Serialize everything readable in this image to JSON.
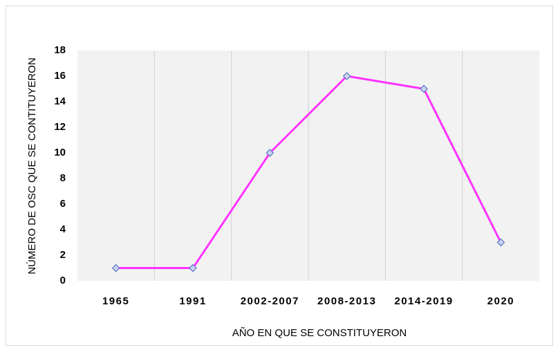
{
  "chart_data": {
    "type": "line",
    "categories": [
      "1965",
      "1991",
      "2002-2007",
      "2008-2013",
      "2014-2019",
      "2020"
    ],
    "series": [
      {
        "name": "OSC",
        "color": "#ff33ff",
        "values": [
          1,
          1,
          10,
          16,
          15,
          3
        ]
      }
    ],
    "x_label": "AÑO EN QUE SE CONSTITUYERON",
    "y_label": "NÚMERO DE OSC QUE SE CONTITUYERON",
    "ylim": [
      0,
      18
    ],
    "yticks": [
      0,
      2,
      4,
      6,
      8,
      10,
      12,
      14,
      16,
      18
    ],
    "category_grid": true
  }
}
